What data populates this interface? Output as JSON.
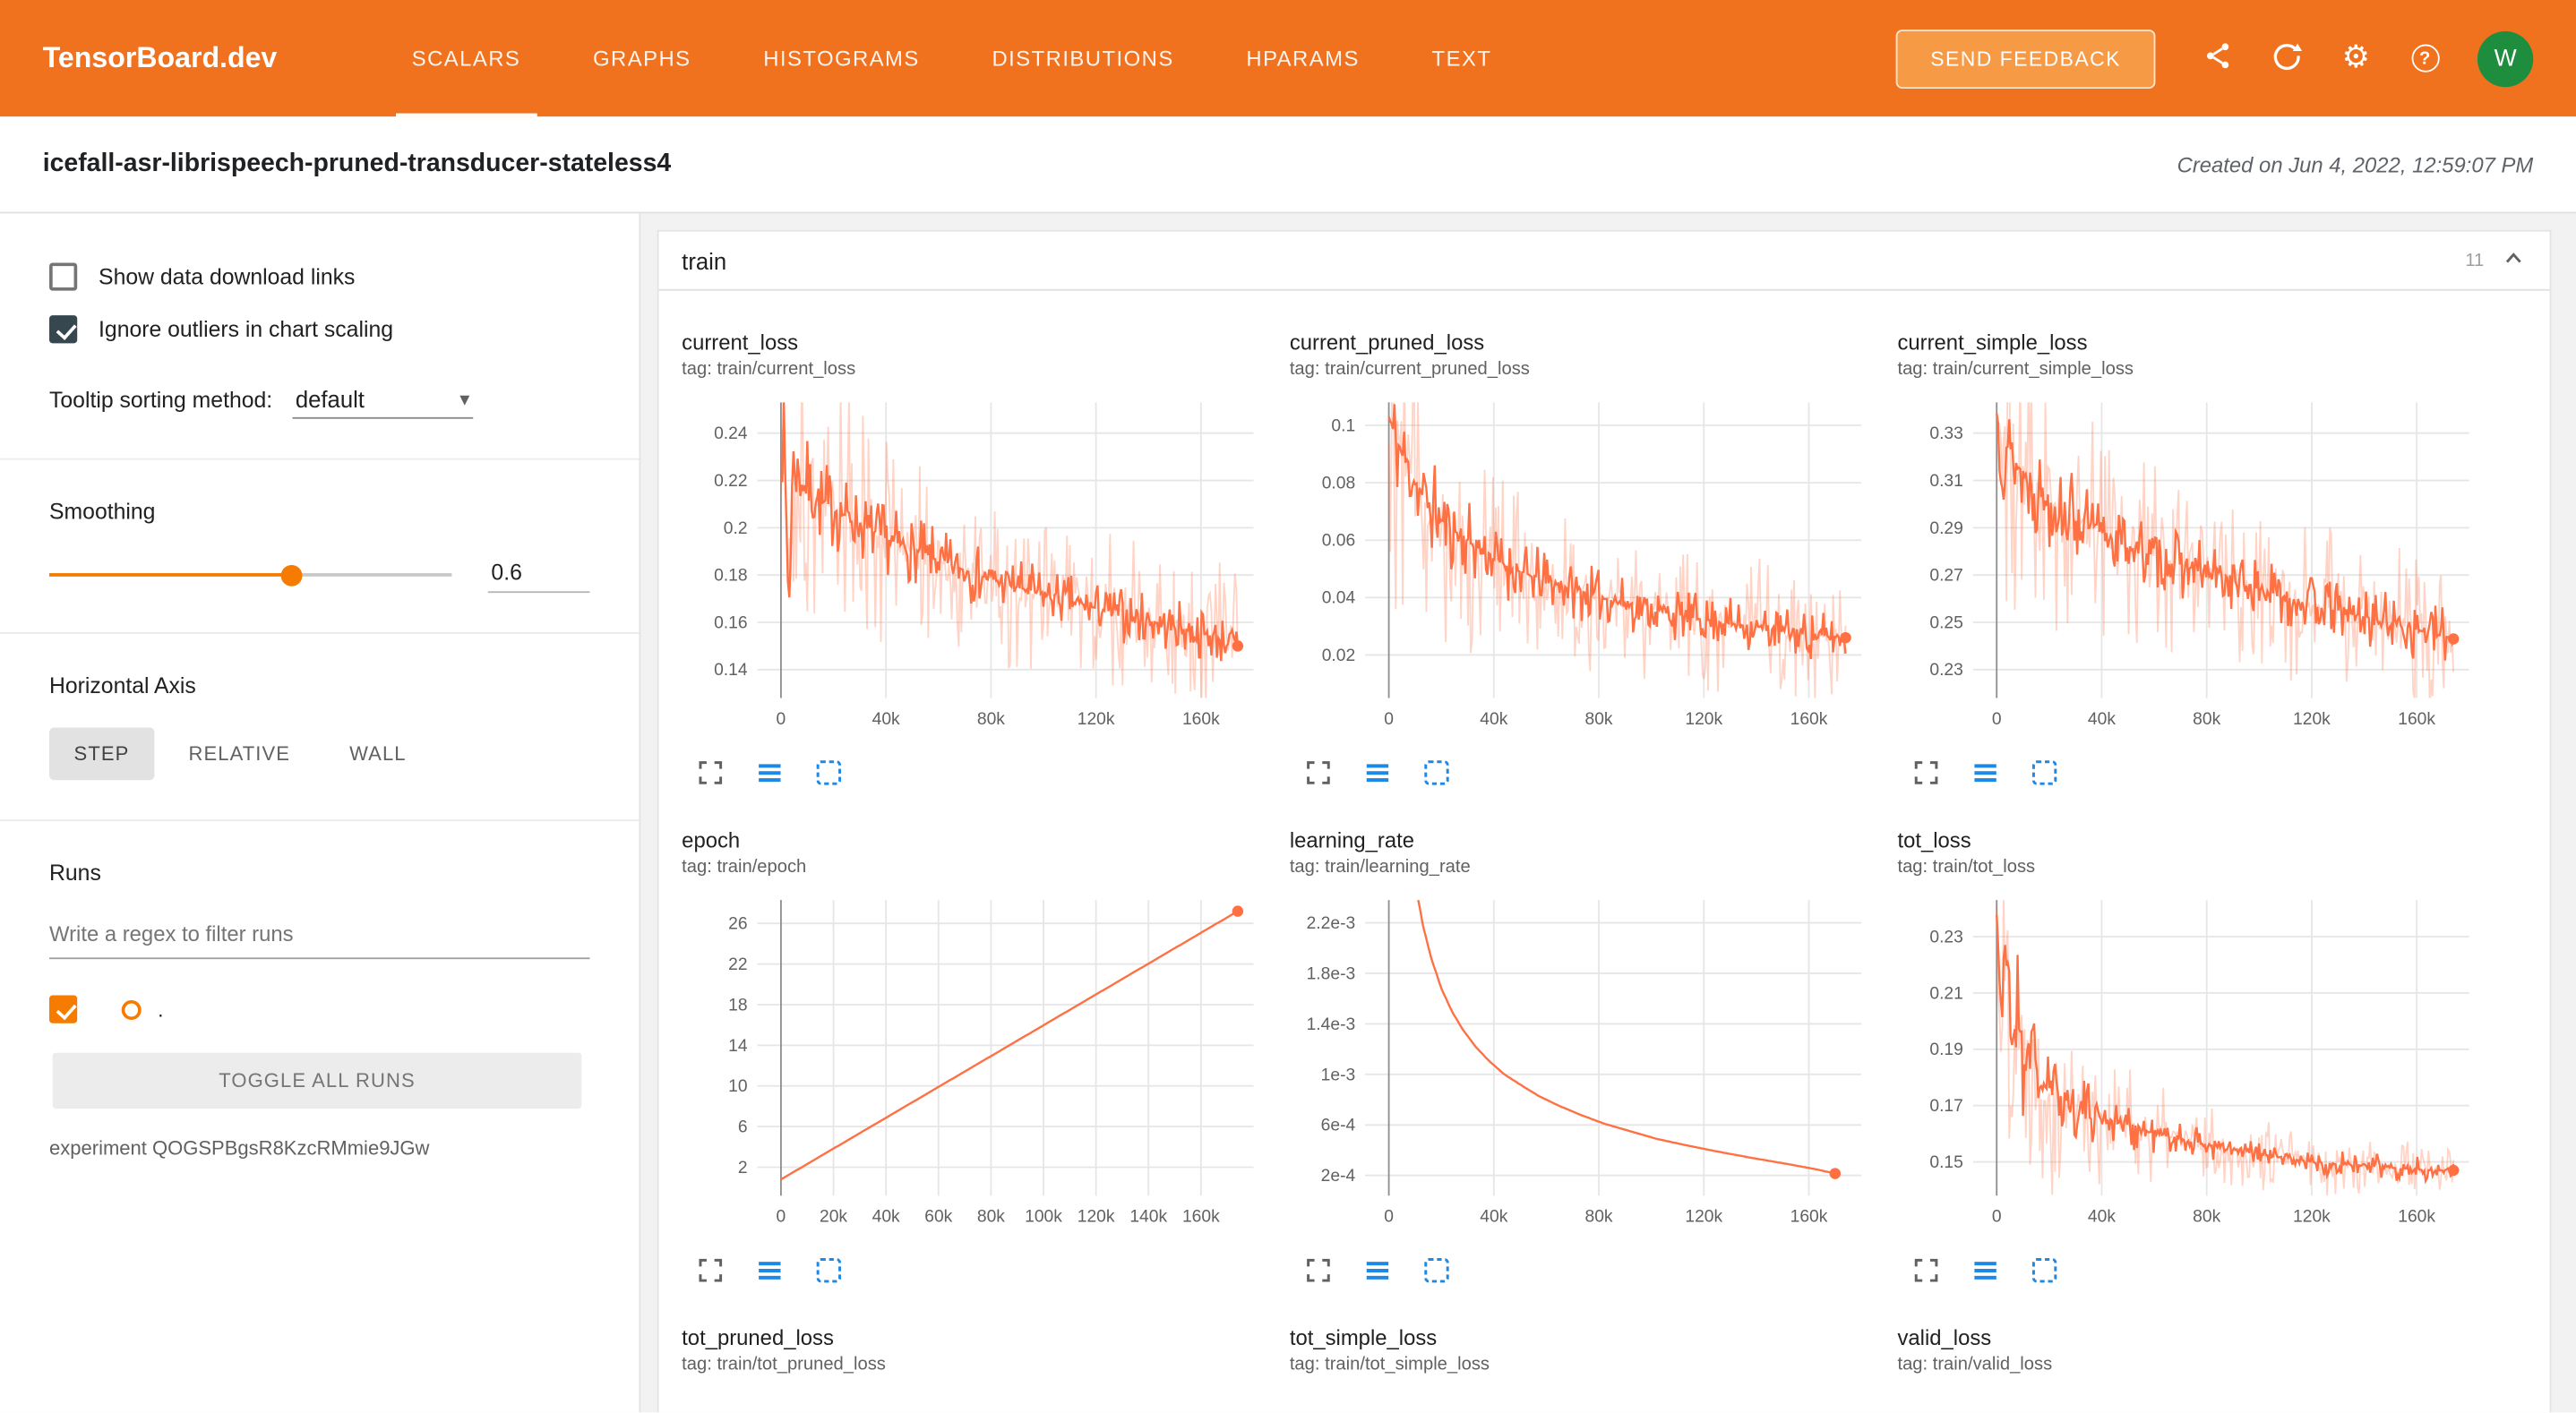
{
  "header": {
    "brand": "TensorBoard.dev",
    "tabs": [
      {
        "label": "SCALARS"
      },
      {
        "label": "GRAPHS"
      },
      {
        "label": "HISTOGRAMS"
      },
      {
        "label": "DISTRIBUTIONS"
      },
      {
        "label": "HPARAMS"
      },
      {
        "label": "TEXT"
      }
    ],
    "active_tab": "SCALARS",
    "send_feedback_label": "SEND FEEDBACK",
    "avatar_initial": "W"
  },
  "subheader": {
    "experiment_title": "icefall-asr-librispeech-pruned-transducer-stateless4",
    "created_text": "Created on Jun 4, 2022, 12:59:07 PM"
  },
  "sidebar": {
    "show_download_label": "Show data download links",
    "ignore_outliers_label": "Ignore outliers in chart scaling",
    "tooltip_sorting_label": "Tooltip sorting method:",
    "tooltip_sorting_value": "default",
    "smoothing_label": "Smoothing",
    "smoothing_value": "0.6",
    "horizontal_axis_label": "Horizontal Axis",
    "axis_options": [
      {
        "label": "STEP",
        "active": true
      },
      {
        "label": "RELATIVE",
        "active": false
      },
      {
        "label": "WALL",
        "active": false
      }
    ],
    "runs_label": "Runs",
    "runs_filter_placeholder": "Write a regex to filter runs",
    "run_name": ".",
    "toggle_all_label": "TOGGLE ALL RUNS",
    "experiment_id_text": "experiment QOGSPBgsR8KzcRMmie9JGw"
  },
  "main": {
    "group_title": "train",
    "group_count": "11"
  },
  "colors": {
    "header_orange": "#f0721f",
    "series_orange": "#ff7043",
    "series_light": "rgba(255,112,67,0.30)",
    "grid_line": "#e6e6e6",
    "zero_line": "#8f8f8f",
    "tick_text": "#616161",
    "icon_gray": "#616161",
    "icon_blue": "#1e88e5"
  },
  "chart_data": [
    {
      "id": "current_loss",
      "type": "line",
      "title": "current_loss",
      "tag": "tag: train/current_loss",
      "x_range": [
        -9000,
        180000
      ],
      "y_range": [
        0.128,
        0.253
      ],
      "x_ticks": [
        {
          "v": 0,
          "label": "0"
        },
        {
          "v": 40000,
          "label": "40k"
        },
        {
          "v": 80000,
          "label": "80k"
        },
        {
          "v": 120000,
          "label": "120k"
        },
        {
          "v": 160000,
          "label": "160k"
        }
      ],
      "y_ticks": [
        {
          "v": 0.14,
          "label": "0.14"
        },
        {
          "v": 0.16,
          "label": "0.16"
        },
        {
          "v": 0.18,
          "label": "0.18"
        },
        {
          "v": 0.2,
          "label": "0.2"
        },
        {
          "v": 0.22,
          "label": "0.22"
        },
        {
          "v": 0.24,
          "label": "0.24"
        }
      ],
      "trend": [
        [
          0,
          0.246
        ],
        [
          1500,
          0.225
        ],
        [
          3000,
          0.163
        ],
        [
          4500,
          0.229
        ],
        [
          8000,
          0.219
        ],
        [
          15000,
          0.211
        ],
        [
          25000,
          0.205
        ],
        [
          35000,
          0.198
        ],
        [
          45000,
          0.193
        ],
        [
          60000,
          0.186
        ],
        [
          75000,
          0.18
        ],
        [
          90000,
          0.175
        ],
        [
          105000,
          0.17
        ],
        [
          120000,
          0.166
        ],
        [
          135000,
          0.162
        ],
        [
          150000,
          0.158
        ],
        [
          165000,
          0.154
        ],
        [
          174000,
          0.15
        ]
      ],
      "noise": 0.012,
      "light_noise": 0.034,
      "boost": 1.2,
      "seed": 7,
      "end_dot": true
    },
    {
      "id": "current_pruned_loss",
      "type": "line",
      "title": "current_pruned_loss",
      "tag": "tag: train/current_pruned_loss",
      "x_range": [
        -9000,
        180000
      ],
      "y_range": [
        0.005,
        0.108
      ],
      "x_ticks": [
        {
          "v": 0,
          "label": "0"
        },
        {
          "v": 40000,
          "label": "40k"
        },
        {
          "v": 80000,
          "label": "80k"
        },
        {
          "v": 120000,
          "label": "120k"
        },
        {
          "v": 160000,
          "label": "160k"
        }
      ],
      "y_ticks": [
        {
          "v": 0.02,
          "label": "0.02"
        },
        {
          "v": 0.04,
          "label": "0.04"
        },
        {
          "v": 0.06,
          "label": "0.06"
        },
        {
          "v": 0.08,
          "label": "0.08"
        },
        {
          "v": 0.1,
          "label": "0.1"
        }
      ],
      "trend": [
        [
          0,
          0.103
        ],
        [
          2000,
          0.097
        ],
        [
          5000,
          0.09
        ],
        [
          9000,
          0.082
        ],
        [
          14000,
          0.074
        ],
        [
          20000,
          0.067
        ],
        [
          28000,
          0.061
        ],
        [
          36000,
          0.056
        ],
        [
          45000,
          0.051
        ],
        [
          55000,
          0.047
        ],
        [
          70000,
          0.043
        ],
        [
          85000,
          0.039
        ],
        [
          100000,
          0.036
        ],
        [
          115000,
          0.033
        ],
        [
          130000,
          0.031
        ],
        [
          145000,
          0.029
        ],
        [
          160000,
          0.027
        ],
        [
          174000,
          0.026
        ]
      ],
      "noise": 0.009,
      "light_noise": 0.024,
      "boost": 1.8,
      "seed": 11,
      "end_dot": true
    },
    {
      "id": "current_simple_loss",
      "type": "line",
      "title": "current_simple_loss",
      "tag": "tag: train/current_simple_loss",
      "x_range": [
        -9000,
        180000
      ],
      "y_range": [
        0.218,
        0.343
      ],
      "x_ticks": [
        {
          "v": 0,
          "label": "0"
        },
        {
          "v": 40000,
          "label": "40k"
        },
        {
          "v": 80000,
          "label": "80k"
        },
        {
          "v": 120000,
          "label": "120k"
        },
        {
          "v": 160000,
          "label": "160k"
        }
      ],
      "y_ticks": [
        {
          "v": 0.23,
          "label": "0.23"
        },
        {
          "v": 0.25,
          "label": "0.25"
        },
        {
          "v": 0.27,
          "label": "0.27"
        },
        {
          "v": 0.29,
          "label": "0.29"
        },
        {
          "v": 0.31,
          "label": "0.31"
        },
        {
          "v": 0.33,
          "label": "0.33"
        }
      ],
      "trend": [
        [
          0,
          0.338
        ],
        [
          2000,
          0.33
        ],
        [
          5000,
          0.322
        ],
        [
          9000,
          0.314
        ],
        [
          14000,
          0.307
        ],
        [
          20000,
          0.301
        ],
        [
          28000,
          0.295
        ],
        [
          36000,
          0.29
        ],
        [
          45000,
          0.285
        ],
        [
          55000,
          0.28
        ],
        [
          70000,
          0.274
        ],
        [
          85000,
          0.269
        ],
        [
          100000,
          0.264
        ],
        [
          115000,
          0.259
        ],
        [
          130000,
          0.255
        ],
        [
          145000,
          0.251
        ],
        [
          160000,
          0.247
        ],
        [
          174000,
          0.243
        ]
      ],
      "noise": 0.013,
      "light_noise": 0.034,
      "boost": 1.2,
      "seed": 13,
      "end_dot": true
    },
    {
      "id": "epoch",
      "type": "line",
      "title": "epoch",
      "tag": "tag: train/epoch",
      "x_range": [
        -9000,
        180000
      ],
      "y_range": [
        -0.8,
        28.3
      ],
      "x_ticks": [
        {
          "v": 0,
          "label": "0"
        },
        {
          "v": 20000,
          "label": "20k"
        },
        {
          "v": 40000,
          "label": "40k"
        },
        {
          "v": 60000,
          "label": "60k"
        },
        {
          "v": 80000,
          "label": "80k"
        },
        {
          "v": 100000,
          "label": "100k"
        },
        {
          "v": 120000,
          "label": "120k"
        },
        {
          "v": 140000,
          "label": "140k"
        },
        {
          "v": 160000,
          "label": "160k"
        }
      ],
      "y_ticks": [
        {
          "v": 2,
          "label": "2"
        },
        {
          "v": 6,
          "label": "6"
        },
        {
          "v": 10,
          "label": "10"
        },
        {
          "v": 14,
          "label": "14"
        },
        {
          "v": 18,
          "label": "18"
        },
        {
          "v": 22,
          "label": "22"
        },
        {
          "v": 26,
          "label": "26"
        }
      ],
      "trend": [
        [
          0,
          0.8
        ],
        [
          174000,
          27.2
        ]
      ],
      "noise": 0,
      "light_noise": 0,
      "boost": 0,
      "seed": 1,
      "end_dot": true
    },
    {
      "id": "learning_rate",
      "type": "line",
      "title": "learning_rate",
      "tag": "tag: train/learning_rate",
      "x_range": [
        -9000,
        180000
      ],
      "y_range": [
        4e-05,
        0.00238
      ],
      "x_ticks": [
        {
          "v": 0,
          "label": "0"
        },
        {
          "v": 40000,
          "label": "40k"
        },
        {
          "v": 80000,
          "label": "80k"
        },
        {
          "v": 120000,
          "label": "120k"
        },
        {
          "v": 160000,
          "label": "160k"
        }
      ],
      "y_ticks": [
        {
          "v": 0.0022,
          "label": "2.2e-3"
        },
        {
          "v": 0.0018,
          "label": "1.8e-3"
        },
        {
          "v": 0.0014,
          "label": "1.4e-3"
        },
        {
          "v": 0.001,
          "label": "1e-3"
        },
        {
          "v": 0.0006,
          "label": "6e-4"
        },
        {
          "v": 0.0002,
          "label": "2e-4"
        }
      ],
      "trend": [
        [
          0,
          0.0062
        ],
        [
          2000,
          0.0048
        ],
        [
          4000,
          0.0039
        ],
        [
          6000,
          0.0033
        ],
        [
          8000,
          0.00285
        ],
        [
          10000,
          0.00252
        ],
        [
          13000,
          0.00218
        ],
        [
          16000,
          0.00193
        ],
        [
          20000,
          0.00168
        ],
        [
          24000,
          0.0015
        ],
        [
          28000,
          0.00136
        ],
        [
          33000,
          0.00122
        ],
        [
          38000,
          0.00111
        ],
        [
          44000,
          0.001
        ],
        [
          50000,
          0.00092
        ],
        [
          57000,
          0.00083
        ],
        [
          65000,
          0.00075
        ],
        [
          73000,
          0.00068
        ],
        [
          82000,
          0.00061
        ],
        [
          92000,
          0.00055
        ],
        [
          102000,
          0.00049
        ],
        [
          113000,
          0.00044
        ],
        [
          125000,
          0.00039
        ],
        [
          138000,
          0.00034
        ],
        [
          152000,
          0.00029
        ],
        [
          162000,
          0.000252
        ],
        [
          170000,
          0.000215
        ]
      ],
      "noise": 0,
      "light_noise": 0,
      "boost": 0,
      "seed": 2,
      "end_dot": true
    },
    {
      "id": "tot_loss",
      "type": "line",
      "title": "tot_loss",
      "tag": "tag: train/tot_loss",
      "x_range": [
        -9000,
        180000
      ],
      "y_range": [
        0.138,
        0.243
      ],
      "x_ticks": [
        {
          "v": 0,
          "label": "0"
        },
        {
          "v": 40000,
          "label": "40k"
        },
        {
          "v": 80000,
          "label": "80k"
        },
        {
          "v": 120000,
          "label": "120k"
        },
        {
          "v": 160000,
          "label": "160k"
        }
      ],
      "y_ticks": [
        {
          "v": 0.15,
          "label": "0.15"
        },
        {
          "v": 0.17,
          "label": "0.17"
        },
        {
          "v": 0.19,
          "label": "0.19"
        },
        {
          "v": 0.21,
          "label": "0.21"
        },
        {
          "v": 0.23,
          "label": "0.23"
        }
      ],
      "trend": [
        [
          0,
          0.238
        ],
        [
          2000,
          0.2
        ],
        [
          4000,
          0.225
        ],
        [
          6000,
          0.19
        ],
        [
          8000,
          0.21
        ],
        [
          10000,
          0.182
        ],
        [
          13000,
          0.196
        ],
        [
          16000,
          0.178
        ],
        [
          20000,
          0.176
        ],
        [
          25000,
          0.173
        ],
        [
          30000,
          0.17
        ],
        [
          40000,
          0.166
        ],
        [
          50000,
          0.163
        ],
        [
          60000,
          0.16
        ],
        [
          75000,
          0.157
        ],
        [
          90000,
          0.154
        ],
        [
          105000,
          0.152
        ],
        [
          120000,
          0.15
        ],
        [
          135000,
          0.149
        ],
        [
          150000,
          0.148
        ],
        [
          165000,
          0.147
        ],
        [
          174000,
          0.147
        ]
      ],
      "noise": 0.0045,
      "light_noise": 0.011,
      "boost": 5,
      "seed": 21,
      "end_dot": true
    },
    {
      "id": "tot_pruned_loss",
      "type": "line",
      "partial": true,
      "title": "tot_pruned_loss",
      "tag": "tag: train/tot_pruned_loss"
    },
    {
      "id": "tot_simple_loss",
      "type": "line",
      "partial": true,
      "title": "tot_simple_loss",
      "tag": "tag: train/tot_simple_loss"
    },
    {
      "id": "valid_loss",
      "type": "line",
      "partial": true,
      "title": "valid_loss",
      "tag": "tag: train/valid_loss"
    }
  ]
}
